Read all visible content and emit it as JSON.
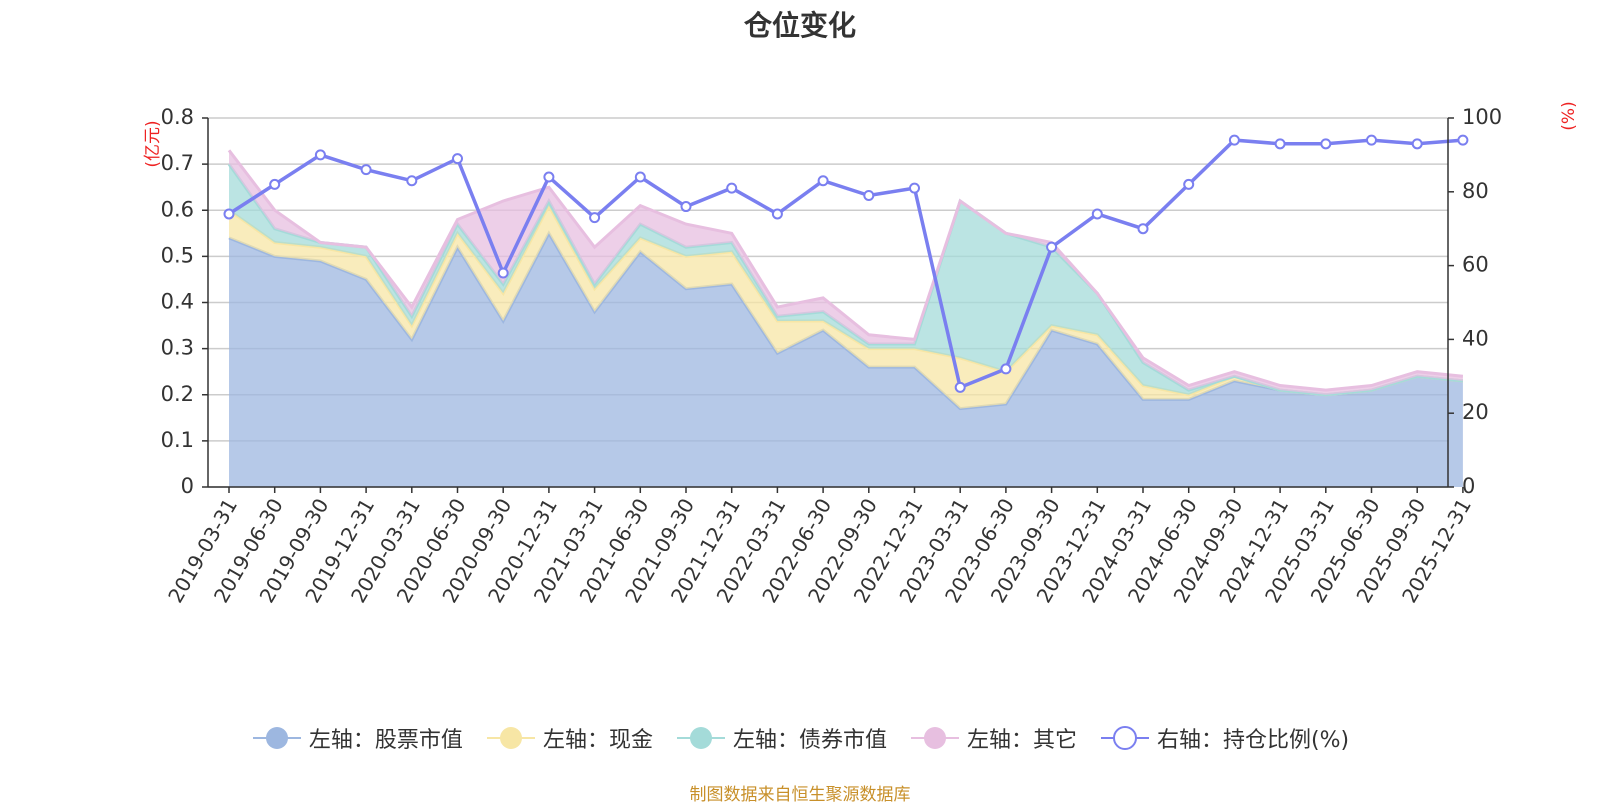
{
  "chart_data": {
    "type": "area",
    "title": "仓位变化",
    "left_axis_unit": "(亿元)",
    "right_axis_unit": "(%)",
    "ylim_left": [
      0,
      0.8
    ],
    "ylim_right": [
      0,
      100
    ],
    "left_ticks": [
      "0",
      "0.1",
      "0.2",
      "0.3",
      "0.4",
      "0.5",
      "0.6",
      "0.7",
      "0.8"
    ],
    "right_ticks": [
      "0",
      "20",
      "40",
      "60",
      "80",
      "100"
    ],
    "categories": [
      "2019-03-31",
      "2019-06-30",
      "2019-09-30",
      "2019-12-31",
      "2020-03-31",
      "2020-06-30",
      "2020-09-30",
      "2020-12-31",
      "2021-03-31",
      "2021-06-30",
      "2021-09-30",
      "2021-12-31",
      "2022-03-31",
      "2022-06-30",
      "2022-09-30",
      "2022-12-31",
      "2023-03-31",
      "2023-06-30",
      "2023-09-30",
      "2023-12-31",
      "2024-03-31",
      "2024-06-30",
      "2024-09-30",
      "2024-12-31",
      "2025-03-31",
      "2025-06-30",
      "2025-09-30",
      "2025-12-31"
    ],
    "series": [
      {
        "name": "左轴：股票市值",
        "axis": "left",
        "kind": "stacked-area",
        "color": "#9db7e0",
        "values": [
          0.54,
          0.5,
          0.49,
          0.45,
          0.32,
          0.52,
          0.36,
          0.55,
          0.38,
          0.51,
          0.43,
          0.44,
          0.29,
          0.34,
          0.26,
          0.26,
          0.17,
          0.18,
          0.34,
          0.31,
          0.19,
          0.19,
          0.23,
          0.21,
          0.2,
          0.21,
          0.24,
          0.23
        ]
      },
      {
        "name": "左轴：现金",
        "axis": "left",
        "kind": "stacked-area",
        "color": "#f7e6a5",
        "values": [
          0.06,
          0.03,
          0.03,
          0.05,
          0.03,
          0.03,
          0.06,
          0.06,
          0.05,
          0.03,
          0.07,
          0.07,
          0.07,
          0.02,
          0.04,
          0.04,
          0.11,
          0.07,
          0.01,
          0.02,
          0.03,
          0.01,
          0.01,
          0.0,
          0.0,
          0.0,
          0.0,
          0.0
        ]
      },
      {
        "name": "左轴：债券市值",
        "axis": "left",
        "kind": "stacked-area",
        "color": "#a4dbd9",
        "values": [
          0.1,
          0.03,
          0.01,
          0.02,
          0.02,
          0.02,
          0.02,
          0.01,
          0.01,
          0.03,
          0.02,
          0.02,
          0.01,
          0.02,
          0.01,
          0.01,
          0.34,
          0.3,
          0.17,
          0.09,
          0.05,
          0.01,
          0.0,
          0.0,
          0.0,
          0.0,
          0.0,
          0.0
        ]
      },
      {
        "name": "左轴：其它",
        "axis": "left",
        "kind": "stacked-area",
        "color": "#e7bfe0",
        "values": [
          0.03,
          0.04,
          0.0,
          0.0,
          0.02,
          0.01,
          0.18,
          0.03,
          0.08,
          0.04,
          0.05,
          0.02,
          0.02,
          0.03,
          0.02,
          0.01,
          0.0,
          0.0,
          0.01,
          0.0,
          0.01,
          0.01,
          0.01,
          0.01,
          0.01,
          0.01,
          0.01,
          0.01
        ]
      },
      {
        "name": "右轴：持仓比例(%)",
        "axis": "right",
        "kind": "line",
        "color": "#7a7ff0",
        "values": [
          74,
          82,
          90,
          86,
          83,
          89,
          58,
          84,
          73,
          84,
          76,
          81,
          74,
          83,
          79,
          81,
          27,
          32,
          65,
          74,
          70,
          82,
          94,
          93,
          93,
          94,
          93,
          94
        ]
      }
    ]
  },
  "source_note": "制图数据来自恒生聚源数据库"
}
